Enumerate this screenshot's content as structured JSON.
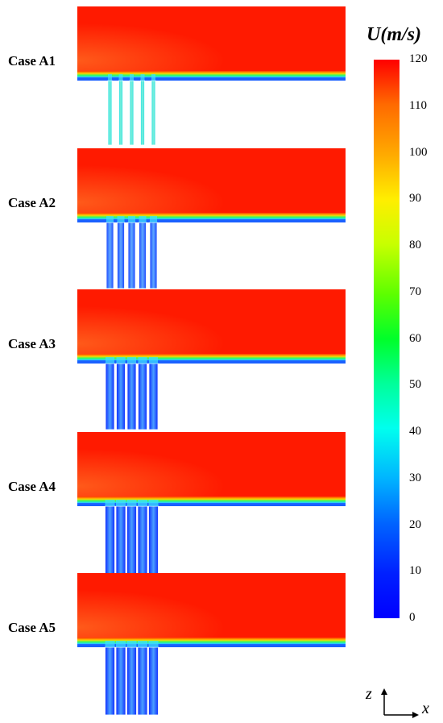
{
  "cases": [
    {
      "label": "Case A1",
      "slot_color": "#2ee0e8",
      "slot_mid": "#7af0d8"
    },
    {
      "label": "Case A2",
      "slot_color": "#1a44ff",
      "slot_mid": "#5fa8ff"
    },
    {
      "label": "Case A3",
      "slot_color": "#0f2cff",
      "slot_mid": "#4aa0ff"
    },
    {
      "label": "Case A4",
      "slot_color": "#0f2cff",
      "slot_mid": "#4aa0ff"
    },
    {
      "label": "Case A5",
      "slot_color": "#0f2cff",
      "slot_mid": "#4aa0ff"
    }
  ],
  "colorbar": {
    "title": "U(m/s)",
    "ticks": [
      "120",
      "110",
      "100",
      "90",
      "80",
      "70",
      "60",
      "50",
      "40",
      "30",
      "20",
      "10",
      "0"
    ],
    "min": 0,
    "max": 120
  },
  "axes": {
    "vertical": "z",
    "horizontal": "x"
  },
  "colors": {
    "flow_high": "#ff1a00",
    "flow_low": "#0000ff"
  }
}
